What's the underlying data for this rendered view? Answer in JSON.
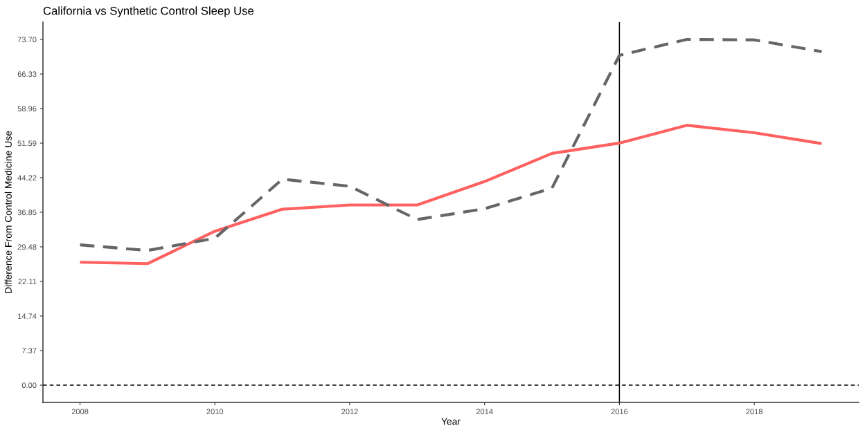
{
  "chart_data": {
    "type": "line",
    "title": "California vs Synthetic Control Sleep Use",
    "xlabel": "Year",
    "ylabel": "Difference From Control Medicine Use",
    "x": [
      2008,
      2009,
      2010,
      2011,
      2012,
      2013,
      2014,
      2015,
      2016,
      2017,
      2018,
      2019
    ],
    "series": [
      {
        "color": "#ff6060",
        "line_style": "solid",
        "values": [
          26.2,
          25.9,
          32.8,
          37.5,
          38.4,
          38.4,
          43.4,
          49.4,
          51.6,
          55.4,
          53.8,
          51.5
        ]
      },
      {
        "color": "#666666",
        "line_style": "dashed",
        "values": [
          29.9,
          28.7,
          31.3,
          43.9,
          42.4,
          35.3,
          37.6,
          42.0,
          70.3,
          73.7,
          73.6,
          71.1
        ]
      }
    ],
    "xlim": [
      2007.45,
      2019.55
    ],
    "xticks": [
      2008,
      2010,
      2012,
      2014,
      2016,
      2018
    ],
    "ylim": [
      -3.685,
      77.385
    ],
    "yticks": [
      {
        "value": 0,
        "label": "0.00"
      },
      {
        "value": 7.37,
        "label": "7.37"
      },
      {
        "value": 14.74,
        "label": "14.74"
      },
      {
        "value": 22.11,
        "label": "22.11"
      },
      {
        "value": 29.48,
        "label": "29.48"
      },
      {
        "value": 36.85,
        "label": "36.85"
      },
      {
        "value": 44.22,
        "label": "44.22"
      },
      {
        "value": 51.59,
        "label": "51.59"
      },
      {
        "value": 58.96,
        "label": "58.96"
      },
      {
        "value": 66.33,
        "label": "66.33"
      },
      {
        "value": 73.7,
        "label": "73.70"
      }
    ],
    "grid": false,
    "marker": "none",
    "ref_lines": [
      {
        "axis": "y",
        "value": 0,
        "color": "#000000",
        "line_style": "dashed"
      },
      {
        "axis": "x",
        "value": 2016,
        "color": "#000000",
        "line_style": "solid"
      }
    ]
  }
}
